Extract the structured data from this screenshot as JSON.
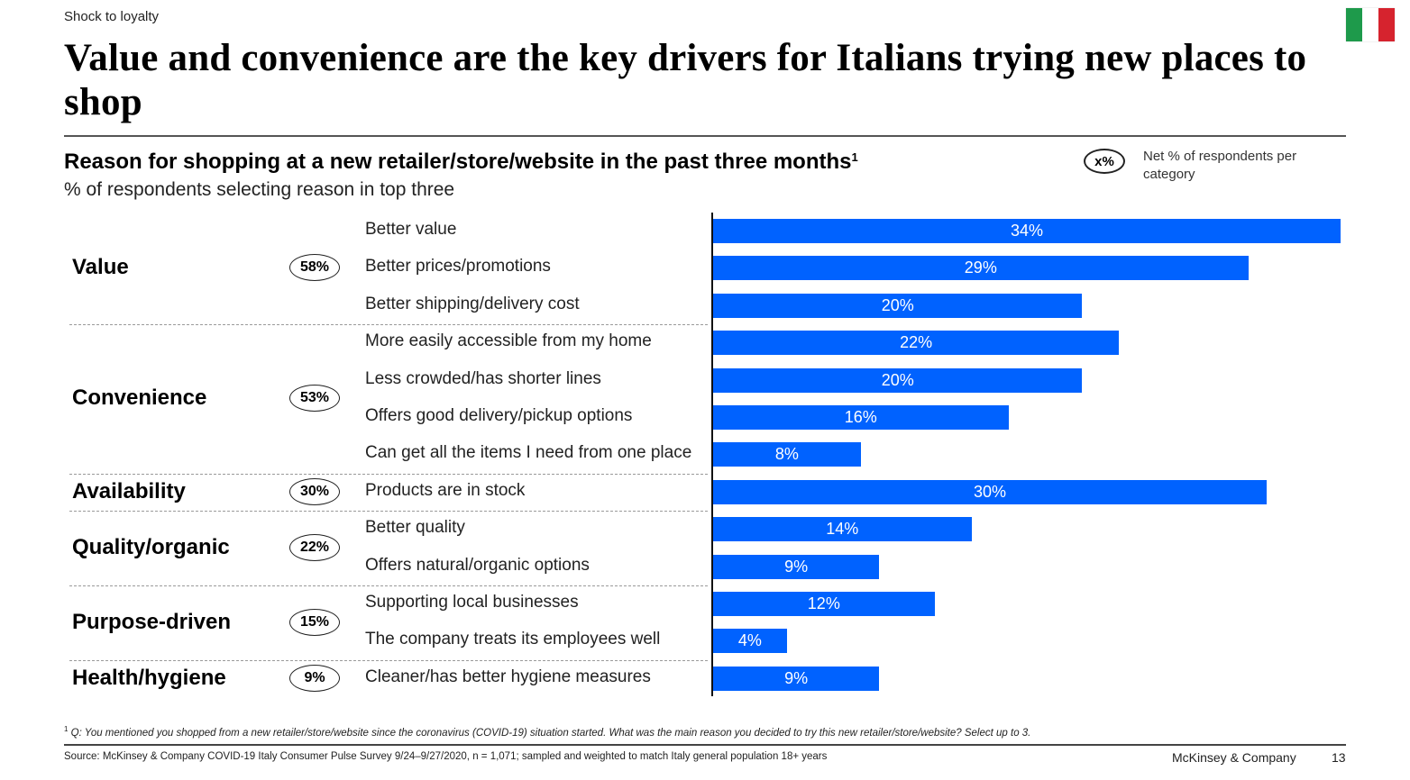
{
  "header": {
    "kicker": "Shock to loyalty",
    "title": "Value and convenience are the key drivers for Italians trying new places to shop",
    "flag": {
      "name": "italy-flag",
      "colors": [
        "#1e9a4b",
        "#ffffff",
        "#d6232e"
      ]
    }
  },
  "chart_header": {
    "title": "Reason for shopping at a new retailer/store/website in the past three months",
    "title_footnote_marker": "1",
    "subtitle": "% of respondents selecting reason in top three"
  },
  "legend": {
    "oval_text": "x%",
    "description": "Net % of respondents per category"
  },
  "colors": {
    "bar": "#0062ff",
    "bar_text": "#ffffff"
  },
  "chart_data": {
    "type": "bar",
    "orientation": "horizontal",
    "title": "Reason for shopping at a new retailer/store/website in the past three months",
    "subtitle": "% of respondents selecting reason in top three",
    "xlim": [
      0,
      34
    ],
    "grid": false,
    "unit": "%",
    "groups": [
      {
        "name": "Value",
        "net": "58%",
        "items": [
          {
            "label": "Better value",
            "value": 34
          },
          {
            "label": "Better prices/promotions",
            "value": 29
          },
          {
            "label": "Better shipping/delivery cost",
            "value": 20
          }
        ]
      },
      {
        "name": "Convenience",
        "net": "53%",
        "items": [
          {
            "label": "More easily accessible from my home",
            "value": 22
          },
          {
            "label": "Less crowded/has shorter lines",
            "value": 20
          },
          {
            "label": "Offers good delivery/pickup options",
            "value": 16
          },
          {
            "label": "Can get all the items I need from one place",
            "value": 8
          }
        ]
      },
      {
        "name": "Availability",
        "net": "30%",
        "items": [
          {
            "label": "Products are in stock",
            "value": 30
          }
        ]
      },
      {
        "name": "Quality/organic",
        "net": "22%",
        "items": [
          {
            "label": "Better quality",
            "value": 14
          },
          {
            "label": "Offers natural/organic options",
            "value": 9
          }
        ]
      },
      {
        "name": "Purpose-driven",
        "net": "15%",
        "items": [
          {
            "label": "Supporting local businesses",
            "value": 12
          },
          {
            "label": "The company treats its employees well",
            "value": 4
          }
        ]
      },
      {
        "name": "Health/hygiene",
        "net": "9%",
        "items": [
          {
            "label": "Cleaner/has better hygiene measures",
            "value": 9
          }
        ]
      }
    ]
  },
  "footer": {
    "footnote_marker": "1",
    "footnote": "Q: You mentioned you shopped from a new retailer/store/website since the coronavirus (COVID-19) situation started. What was the main reason you decided to try this new retailer/store/website? Select up to 3.",
    "source": "Source: McKinsey & Company COVID-19 Italy Consumer Pulse Survey 9/24–9/27/2020, n = 1,071; sampled and weighted to match Italy general population 18+ years",
    "brand": "McKinsey & Company",
    "page_number": "13"
  }
}
